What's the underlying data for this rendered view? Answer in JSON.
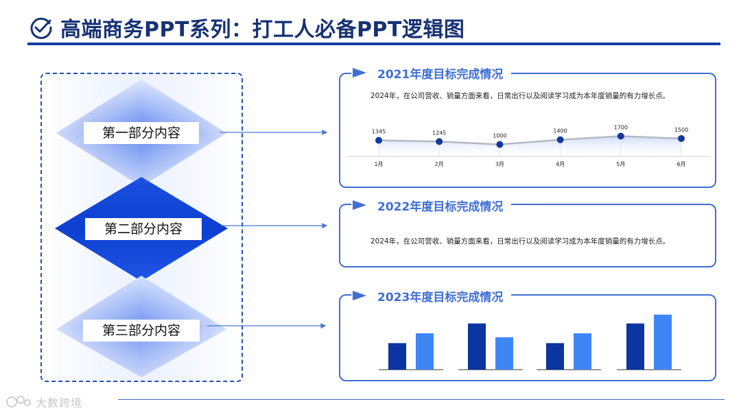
{
  "title": "高端商务PPT系列：打工人必备PPT逻辑图",
  "sections": [
    {
      "label": "第一部分内容"
    },
    {
      "label": "第二部分内容"
    },
    {
      "label": "第三部分内容"
    }
  ],
  "cards": [
    {
      "heading": "2021年度目标完成情况",
      "desc": "2024年，在公司营收、销量方面来看，日常出行以及阅读学习成为本年度销量的有力增长点。"
    },
    {
      "heading": "2022年度目标完成情况",
      "desc": "2024年，在公司营收、销量方面来看，日常出行以及阅读学习成为本年度销量的有力增长点。"
    },
    {
      "heading": "2023年度目标完成情况"
    }
  ],
  "chart_data": [
    {
      "type": "line",
      "categories": [
        "1月",
        "2月",
        "3月",
        "4月",
        "5月",
        "6月"
      ],
      "values": [
        1345,
        1245,
        1000,
        1400,
        1700,
        1500
      ],
      "data_labels": [
        "1345",
        "1245",
        "1000",
        "1400",
        "1700",
        "1500"
      ],
      "ylim": [
        0,
        2500
      ],
      "grid": false,
      "line_color": "#b5b9c2",
      "marker_color": "#123a9a"
    },
    {
      "type": "bar",
      "groups": 4,
      "series": [
        {
          "values": [
            2.7,
            4.7,
            2.7,
            4.7
          ],
          "color": "#0b35a0"
        },
        {
          "values": [
            3.7,
            3.3,
            3.7,
            5.6
          ],
          "color": "#3f86f5"
        }
      ],
      "ylim": [
        0,
        6
      ],
      "axis_labels": false
    }
  ],
  "footer": {
    "watermark": "大数跨境"
  },
  "colors": {
    "accent": "#173ea6",
    "card_border": "#3f6fd1",
    "diamond_dark": "#0d3fd0",
    "diamond_light": "#5f86ee"
  }
}
